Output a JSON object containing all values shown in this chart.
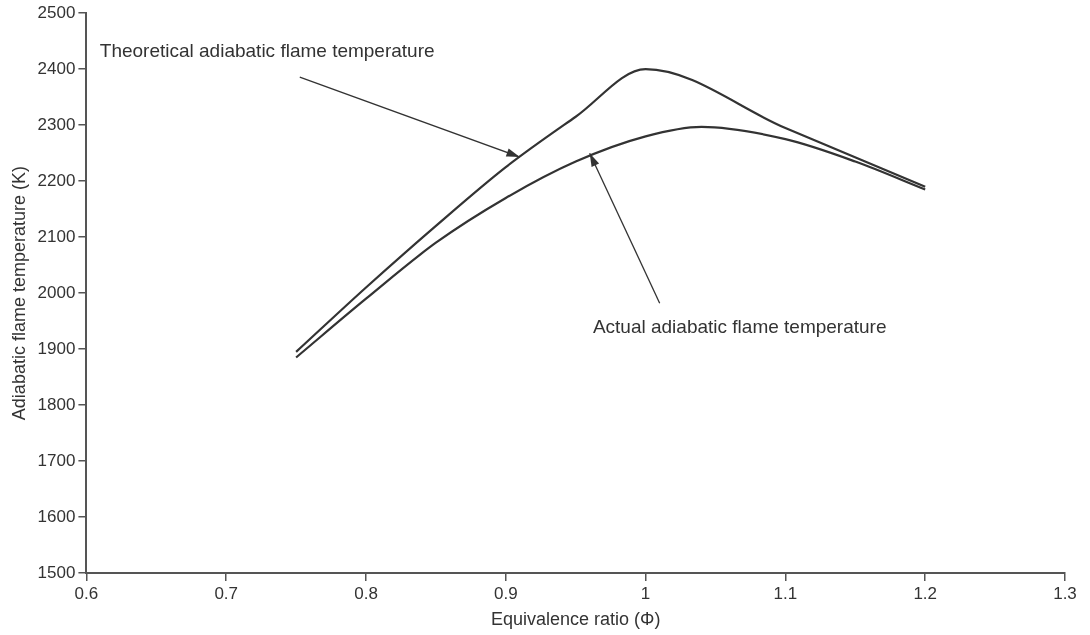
{
  "chart_data": {
    "type": "line",
    "xlabel": "Equivalence ratio (Φ)",
    "ylabel": "Adiabatic flame temperature (K)",
    "xlim": [
      0.6,
      1.3
    ],
    "xticks": [
      0.6,
      0.7,
      0.8,
      0.9,
      1,
      1.1,
      1.2,
      1.3
    ],
    "ylim": [
      1500,
      2500
    ],
    "yticks": [
      1500,
      1600,
      1700,
      1800,
      1900,
      2000,
      2100,
      2200,
      2300,
      2400,
      2500
    ],
    "grid": false,
    "legend": false,
    "marker": "none",
    "line_style": "solid",
    "series": [
      {
        "color": "#333333",
        "x": [
          0.75,
          0.8,
          0.85,
          0.9,
          0.95,
          1.0,
          1.1,
          1.2
        ],
        "values": [
          1895,
          2010,
          2120,
          2225,
          2315,
          2400,
          2295,
          2190
        ]
      },
      {
        "color": "#333333",
        "x": [
          0.75,
          0.8,
          0.85,
          0.9,
          0.95,
          1.0,
          1.04,
          1.1,
          1.15,
          1.2
        ],
        "values": [
          1885,
          1990,
          2090,
          2170,
          2235,
          2280,
          2297,
          2275,
          2235,
          2185
        ]
      }
    ],
    "annotations": [
      {
        "text": "Theoretical adiabatic flame temperature",
        "x": 0.91,
        "y": 2243
      },
      {
        "text": "Actual adiabatic flame temperature",
        "x": 0.96,
        "y": 2250
      }
    ]
  }
}
